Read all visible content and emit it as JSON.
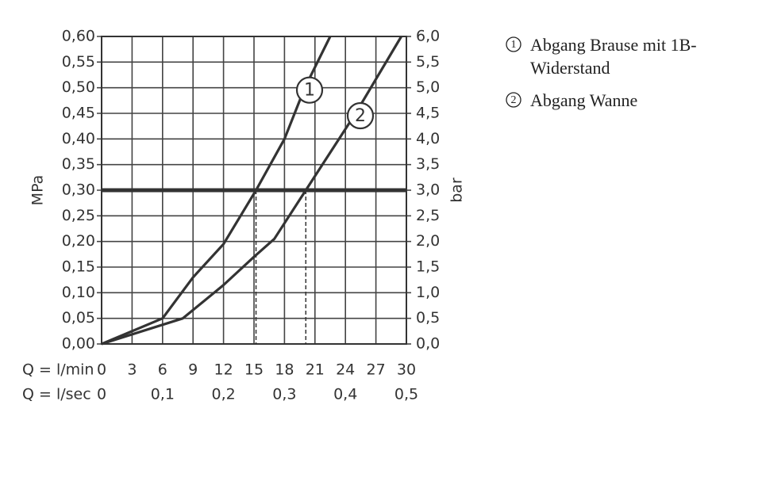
{
  "chart_data": {
    "type": "line",
    "x_label": "Q = l/min",
    "x2_label": "Q = l/sec",
    "y_label": "MPa",
    "y2_label": "bar",
    "xlim": [
      0,
      30
    ],
    "xticks": [
      0,
      3,
      6,
      9,
      12,
      15,
      18,
      21,
      24,
      27,
      30
    ],
    "x2lim": [
      0,
      0.5
    ],
    "x2ticks": [
      0,
      {
        "value": 0.1,
        "label": "0,1"
      },
      {
        "value": 0.2,
        "label": "0,2"
      },
      {
        "value": 0.3,
        "label": "0,3"
      },
      {
        "value": 0.4,
        "label": "0,4"
      },
      {
        "value": 0.5,
        "label": "0,5"
      }
    ],
    "ylim": [
      0,
      0.6
    ],
    "yticks": [
      {
        "value": 0,
        "label": "0,00"
      },
      {
        "value": 0.05,
        "label": "0,05"
      },
      {
        "value": 0.1,
        "label": "0,10"
      },
      {
        "value": 0.15,
        "label": "0,15"
      },
      {
        "value": 0.2,
        "label": "0,20"
      },
      {
        "value": 0.25,
        "label": "0,25"
      },
      {
        "value": 0.3,
        "label": "0,30"
      },
      {
        "value": 0.35,
        "label": "0,35"
      },
      {
        "value": 0.4,
        "label": "0,40"
      },
      {
        "value": 0.45,
        "label": "0,45"
      },
      {
        "value": 0.5,
        "label": "0,50"
      },
      {
        "value": 0.55,
        "label": "0,55"
      },
      {
        "value": 0.6,
        "label": "0,60"
      }
    ],
    "y2lim": [
      0,
      6
    ],
    "y2ticks": [
      {
        "value": 0,
        "label": "0,0"
      },
      {
        "value": 0.5,
        "label": "0,5"
      },
      {
        "value": 1,
        "label": "1,0"
      },
      {
        "value": 1.5,
        "label": "1,5"
      },
      {
        "value": 2,
        "label": "2,0"
      },
      {
        "value": 2.5,
        "label": "2,5"
      },
      {
        "value": 3,
        "label": "3,0"
      },
      {
        "value": 3.5,
        "label": "3,5"
      },
      {
        "value": 4,
        "label": "4,0"
      },
      {
        "value": 4.5,
        "label": "4,5"
      },
      {
        "value": 5,
        "label": "5,0"
      },
      {
        "value": 5.5,
        "label": "5,5"
      },
      {
        "value": 6,
        "label": "6,0"
      }
    ],
    "grid": true,
    "color": "#333333",
    "reference_y": 0.3,
    "crossings_x": [
      15.2,
      20.1
    ],
    "series": [
      {
        "name": "Abgang Brause mit 1B-Widerstand",
        "label": "1",
        "color": "#333333",
        "x": [
          0,
          6,
          9,
          12,
          15.2,
          18,
          20,
          22.5
        ],
        "values": [
          0,
          0.05,
          0.13,
          0.195,
          0.3,
          0.4,
          0.5,
          0.6
        ]
      },
      {
        "name": "Abgang Wanne",
        "label": "2",
        "color": "#333333",
        "x": [
          0,
          8,
          12,
          15,
          17,
          20.1,
          25,
          29.5
        ],
        "values": [
          0,
          0.05,
          0.115,
          0.17,
          0.205,
          0.3,
          0.45,
          0.6
        ]
      }
    ]
  }
}
